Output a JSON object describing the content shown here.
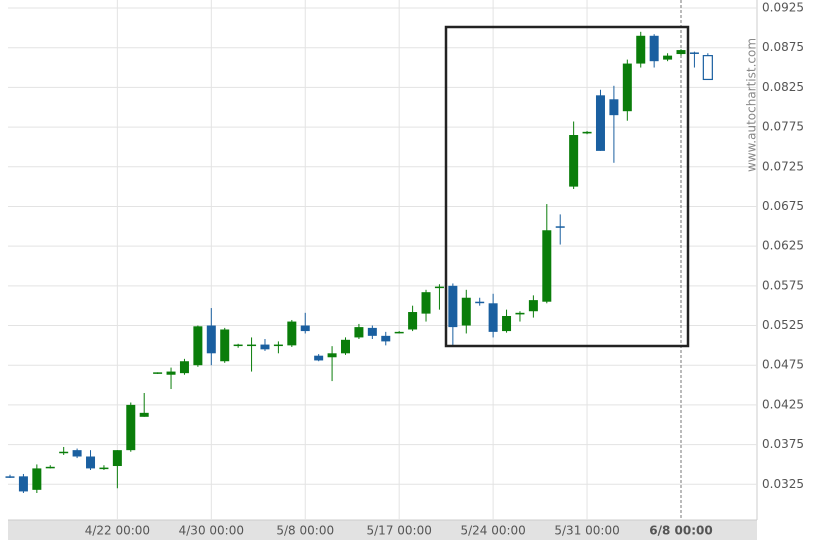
{
  "chart_data": {
    "type": "candlestick",
    "watermark": "www.autochartist.com",
    "categories": [
      null,
      null,
      null,
      null,
      null,
      null,
      null,
      null,
      "4/22 00:00",
      null,
      null,
      null,
      null,
      null,
      null,
      "4/30 00:00",
      null,
      null,
      null,
      null,
      null,
      null,
      "5/8 00:00",
      null,
      null,
      null,
      null,
      null,
      null,
      "5/17 00:00",
      null,
      null,
      null,
      null,
      null,
      null,
      "5/24 00:00",
      null,
      null,
      null,
      null,
      null,
      null,
      "5/31 00:00",
      null,
      null,
      null,
      null,
      null,
      null,
      "6/8 00:00",
      null,
      null
    ],
    "open": [
      0.0335,
      0.0335,
      0.0318,
      0.0347,
      0.0365,
      0.0368,
      0.036,
      0.0345,
      0.0348,
      0.0368,
      0.041,
      0.0465,
      0.0463,
      0.0465,
      0.0475,
      0.0525,
      0.048,
      0.05,
      0.05,
      0.0501,
      0.05,
      0.05,
      0.0525,
      0.0487,
      0.0485,
      0.049,
      0.051,
      0.0522,
      0.0512,
      0.0516,
      0.052,
      0.054,
      0.0573,
      0.0575,
      0.0525,
      0.0555,
      0.0553,
      0.0518,
      0.0539,
      0.0543,
      0.0555,
      0.065,
      0.07,
      0.0767,
      0.0815,
      0.081,
      0.0795,
      0.0855,
      0.089,
      0.086,
      0.0867,
      0.0869,
      0.0865
    ],
    "high": [
      0.0337,
      0.0338,
      0.035,
      0.0349,
      0.0372,
      0.037,
      0.0368,
      0.0349,
      0.0368,
      0.0428,
      0.044,
      0.0466,
      0.0472,
      0.0483,
      0.0525,
      0.0547,
      0.0522,
      0.0502,
      0.051,
      0.0508,
      0.0505,
      0.0532,
      0.0541,
      0.0489,
      0.0499,
      0.051,
      0.0527,
      0.0525,
      0.0517,
      0.0518,
      0.055,
      0.057,
      0.0577,
      0.0578,
      0.057,
      0.056,
      0.0565,
      0.0545,
      0.0543,
      0.0563,
      0.0678,
      0.0665,
      0.0782,
      0.077,
      0.0822,
      0.0827,
      0.086,
      0.0895,
      0.0892,
      0.0868,
      0.0873,
      0.087,
      0.0868
    ],
    "low": [
      0.0333,
      0.0314,
      0.0314,
      0.0345,
      0.0362,
      0.0358,
      0.0343,
      0.0343,
      0.032,
      0.0366,
      0.041,
      0.0464,
      0.0445,
      0.0463,
      0.0473,
      0.0475,
      0.0478,
      0.0497,
      0.0467,
      0.0493,
      0.049,
      0.0498,
      0.0515,
      0.048,
      0.0455,
      0.0488,
      0.0508,
      0.0508,
      0.05,
      0.0515,
      0.0518,
      0.053,
      0.0545,
      0.05,
      0.0515,
      0.055,
      0.051,
      0.0516,
      0.053,
      0.0535,
      0.0553,
      0.0627,
      0.0697,
      0.0766,
      0.0745,
      0.073,
      0.0783,
      0.085,
      0.085,
      0.0858,
      0.0865,
      0.085,
      0.0835
    ],
    "close": [
      0.0334,
      0.0316,
      0.0345,
      0.0347,
      0.0366,
      0.036,
      0.0345,
      0.0346,
      0.0368,
      0.0425,
      0.0415,
      0.0466,
      0.0467,
      0.048,
      0.0524,
      0.049,
      0.052,
      0.0501,
      0.0501,
      0.0495,
      0.0501,
      0.053,
      0.0518,
      0.0481,
      0.049,
      0.0507,
      0.0523,
      0.0512,
      0.0505,
      0.0517,
      0.0542,
      0.0567,
      0.0574,
      0.0523,
      0.056,
      0.0554,
      0.0517,
      0.0537,
      0.0541,
      0.0557,
      0.0645,
      0.0649,
      0.0765,
      0.0769,
      0.0745,
      0.079,
      0.0855,
      0.089,
      0.0858,
      0.0865,
      0.0872,
      0.0868,
      0.0835
    ],
    "up_color": "#0a7d0a",
    "down_color": "#1a5fa0",
    "last_candle_hollow": true,
    "highlight_index": 50,
    "ylim": [
      0.028,
      0.0925
    ],
    "yticks": [
      0.0325,
      0.0375,
      0.0425,
      0.0475,
      0.0525,
      0.0575,
      0.0625,
      0.0675,
      0.0725,
      0.0775,
      0.0825,
      0.0875,
      0.0925
    ],
    "grid": true
  }
}
